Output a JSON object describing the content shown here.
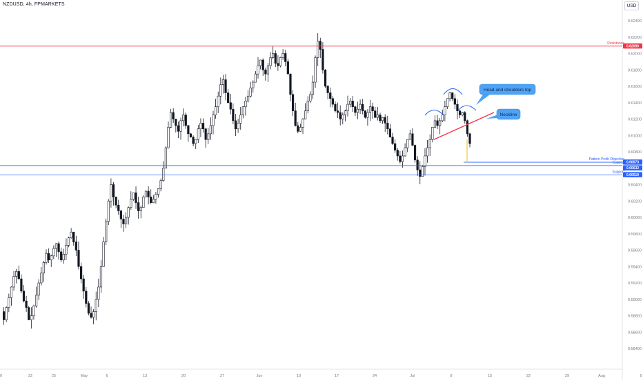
{
  "header": {
    "symbol_label": "NZDUSD, 4h, FPMARKETS",
    "currency_label": "USD"
  },
  "colors": {
    "candle": "#131722",
    "resistance": "#f23645",
    "support": "#2962ff",
    "callout_fill": "#4fa3f7",
    "neckline": "#f23645",
    "arc": "#2962ff",
    "move_line": "#f0b90b"
  },
  "chart_data": {
    "type": "candlestick",
    "symbol": "NZDUSD",
    "timeframe": "4h",
    "ylim": [
      0.584,
      0.6245
    ],
    "y_ticks": [
      "0.62400",
      "0.62200",
      "0.62000",
      "0.61800",
      "0.61600",
      "0.61400",
      "0.61200",
      "0.61000",
      "0.60800",
      "0.60600",
      "0.60400",
      "0.60200",
      "0.60000",
      "0.59800",
      "0.59600",
      "0.59400",
      "0.59200",
      "0.59000",
      "0.58800",
      "0.58600",
      "0.58400"
    ],
    "x_ticks": [
      "0",
      "22",
      "25",
      "May",
      "6",
      "13",
      "20",
      "27",
      "Jun",
      "10",
      "17",
      "24",
      "Jul",
      "8",
      "15",
      "22",
      "29",
      "Aug",
      "6"
    ],
    "levels": [
      {
        "label": "Resistance",
        "value": 0.6209,
        "badge": "0.62090"
      },
      {
        "label": "Pattern Profit Objective",
        "value": 0.60673,
        "badge": "0.60673"
      },
      {
        "label": "Support",
        "value": 0.60632,
        "badge": "0.60632"
      },
      {
        "label": "Support",
        "value": 0.60519,
        "badge": "0.60519"
      }
    ],
    "annotations": [
      {
        "text": "Head and shoulders top"
      },
      {
        "text": "Neckline"
      }
    ],
    "price_path": [
      [
        0.5885,
        0.5875,
        0.589,
        0.5902,
        0.5915,
        0.5928,
        0.5934,
        0.5925,
        0.591,
        0.5898,
        0.589,
        0.5875,
        0.588,
        0.5892,
        0.5905,
        0.592,
        0.5932,
        0.5945,
        0.5956,
        0.5948,
        0.5953,
        0.5962,
        0.5968,
        0.5958,
        0.5948,
        0.5955,
        0.5966,
        0.5975,
        0.5982,
        0.597,
        0.596,
        0.594,
        0.5925,
        0.591,
        0.5895,
        0.5883,
        0.5878,
        0.5885,
        0.59,
        0.5915,
        0.594,
        0.597,
        0.5995,
        0.602,
        0.604,
        0.6025,
        0.6015,
        0.6008,
        0.5998,
        0.5992,
        0.6,
        0.6012,
        0.6022,
        0.603,
        0.6018,
        0.6008,
        0.6012,
        0.6025,
        0.6032,
        0.6025,
        0.6018,
        0.6022,
        0.6028,
        0.6035,
        0.6045,
        0.606,
        0.6085,
        0.611,
        0.6128,
        0.612,
        0.6112,
        0.6105,
        0.6118,
        0.6125,
        0.6112,
        0.6102,
        0.6098,
        0.609,
        0.6095,
        0.6108,
        0.6115,
        0.6108,
        0.6095,
        0.6102,
        0.6112,
        0.6125,
        0.6135,
        0.6148,
        0.6162,
        0.6168,
        0.6152,
        0.614,
        0.6132,
        0.6118,
        0.6108,
        0.6115,
        0.6125,
        0.6135,
        0.6142,
        0.6148,
        0.6158,
        0.6165,
        0.6175,
        0.6185,
        0.6192,
        0.618,
        0.6175,
        0.6185,
        0.6195,
        0.62,
        0.6188,
        0.6185,
        0.6195,
        0.62,
        0.619,
        0.6175,
        0.615,
        0.613,
        0.6112,
        0.6105,
        0.611,
        0.612,
        0.613,
        0.6142,
        0.615,
        0.6165,
        0.6195,
        0.6215,
        0.6205,
        0.618,
        0.616,
        0.6152,
        0.6145,
        0.6138,
        0.613,
        0.6128,
        0.612,
        0.6125,
        0.613,
        0.6138,
        0.6142,
        0.6135,
        0.6128,
        0.6132,
        0.6138,
        0.613,
        0.6122,
        0.6128,
        0.6135,
        0.613,
        0.6122,
        0.6125,
        0.6118,
        0.6122,
        0.6115,
        0.6108,
        0.6098,
        0.609,
        0.6082,
        0.6075,
        0.6068,
        0.6075,
        0.6085,
        0.6095,
        0.6102,
        0.6088,
        0.607,
        0.6058,
        0.605,
        0.6062,
        0.6075,
        0.6085,
        0.6095,
        0.611,
        0.6118,
        0.6112,
        0.6118,
        0.6125,
        0.6135,
        0.6145,
        0.6152,
        0.6145,
        0.6138,
        0.613,
        0.6125,
        0.6128,
        0.6118,
        0.6102,
        0.609
      ]
    ]
  }
}
